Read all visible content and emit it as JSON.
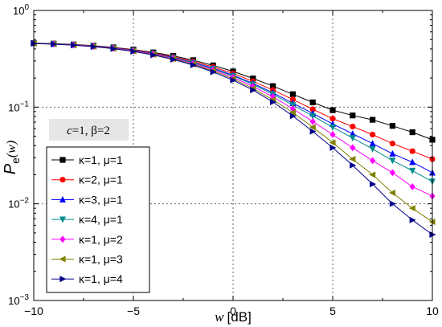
{
  "chart_data": {
    "type": "line",
    "title": "",
    "xlabel_var": "w",
    "xlabel_unit": "[dB]",
    "ylabel_main": "P",
    "ylabel_sub": "e",
    "ylabel_arg": "(w)",
    "xlim": [
      -10,
      10
    ],
    "ylim": [
      0.001,
      1
    ],
    "y_scale": "log",
    "x_ticks": [
      -10,
      -5,
      0,
      5,
      10
    ],
    "x_tick_labels": [
      "−10",
      "−5",
      "0",
      "5",
      "10"
    ],
    "y_ticks": [
      0.001,
      0.01,
      0.1,
      1
    ],
    "y_tick_base": "10",
    "y_tick_exps": [
      "−3",
      "−2",
      "−1",
      "0"
    ],
    "grid": "dotted at x=-5,0,5 and y=0.01,0.1",
    "legend_position": "left-lower",
    "annotation": {
      "c_label": "c",
      "c_rest": "=1, β=2"
    },
    "x": [
      -10,
      -9,
      -8,
      -7,
      -6,
      -5,
      -4,
      -3,
      -2,
      -1,
      0,
      1,
      2,
      3,
      4,
      5,
      6,
      7,
      8,
      9,
      10
    ],
    "series": [
      {
        "name": "κ=1, μ=1",
        "color": "#000000",
        "marker": "square",
        "values": [
          0.46,
          0.454,
          0.445,
          0.432,
          0.415,
          0.394,
          0.368,
          0.339,
          0.306,
          0.27,
          0.234,
          0.198,
          0.165,
          0.136,
          0.112,
          0.093,
          0.082,
          0.074,
          0.064,
          0.055,
          0.046
        ]
      },
      {
        "name": "κ=2, μ=1",
        "color": "#ff0000",
        "marker": "circle",
        "values": [
          0.459,
          0.452,
          0.443,
          0.429,
          0.411,
          0.389,
          0.362,
          0.331,
          0.297,
          0.26,
          0.223,
          0.185,
          0.15,
          0.12,
          0.095,
          0.076,
          0.063,
          0.052,
          0.042,
          0.035,
          0.029
        ]
      },
      {
        "name": "κ=3, μ=1",
        "color": "#0000ff",
        "marker": "triangle-up",
        "values": [
          0.458,
          0.451,
          0.441,
          0.427,
          0.409,
          0.386,
          0.358,
          0.326,
          0.29,
          0.253,
          0.214,
          0.176,
          0.141,
          0.11,
          0.086,
          0.067,
          0.053,
          0.042,
          0.033,
          0.027,
          0.021
        ]
      },
      {
        "name": "κ=4, μ=1",
        "color": "#008b8b",
        "marker": "triangle-down",
        "values": [
          0.458,
          0.451,
          0.44,
          0.426,
          0.407,
          0.384,
          0.356,
          0.323,
          0.287,
          0.249,
          0.21,
          0.172,
          0.136,
          0.105,
          0.081,
          0.062,
          0.048,
          0.037,
          0.028,
          0.022,
          0.017
        ]
      },
      {
        "name": "κ=1, μ=2",
        "color": "#ff00ff",
        "marker": "diamond",
        "values": [
          0.457,
          0.45,
          0.439,
          0.425,
          0.406,
          0.382,
          0.353,
          0.319,
          0.282,
          0.243,
          0.203,
          0.164,
          0.128,
          0.096,
          0.071,
          0.052,
          0.038,
          0.028,
          0.021,
          0.015,
          0.012
        ]
      },
      {
        "name": "κ=1, μ=3",
        "color": "#808000",
        "marker": "triangle-left",
        "values": [
          0.456,
          0.449,
          0.438,
          0.423,
          0.404,
          0.379,
          0.349,
          0.315,
          0.277,
          0.237,
          0.196,
          0.156,
          0.119,
          0.088,
          0.062,
          0.043,
          0.029,
          0.02,
          0.013,
          0.009,
          0.0065
        ]
      },
      {
        "name": "κ=1, μ=4",
        "color": "#00008b",
        "marker": "triangle-right",
        "values": [
          0.455,
          0.448,
          0.437,
          0.422,
          0.402,
          0.377,
          0.346,
          0.311,
          0.272,
          0.231,
          0.19,
          0.15,
          0.113,
          0.081,
          0.056,
          0.038,
          0.025,
          0.016,
          0.01,
          0.0068,
          0.0048
        ]
      }
    ]
  }
}
